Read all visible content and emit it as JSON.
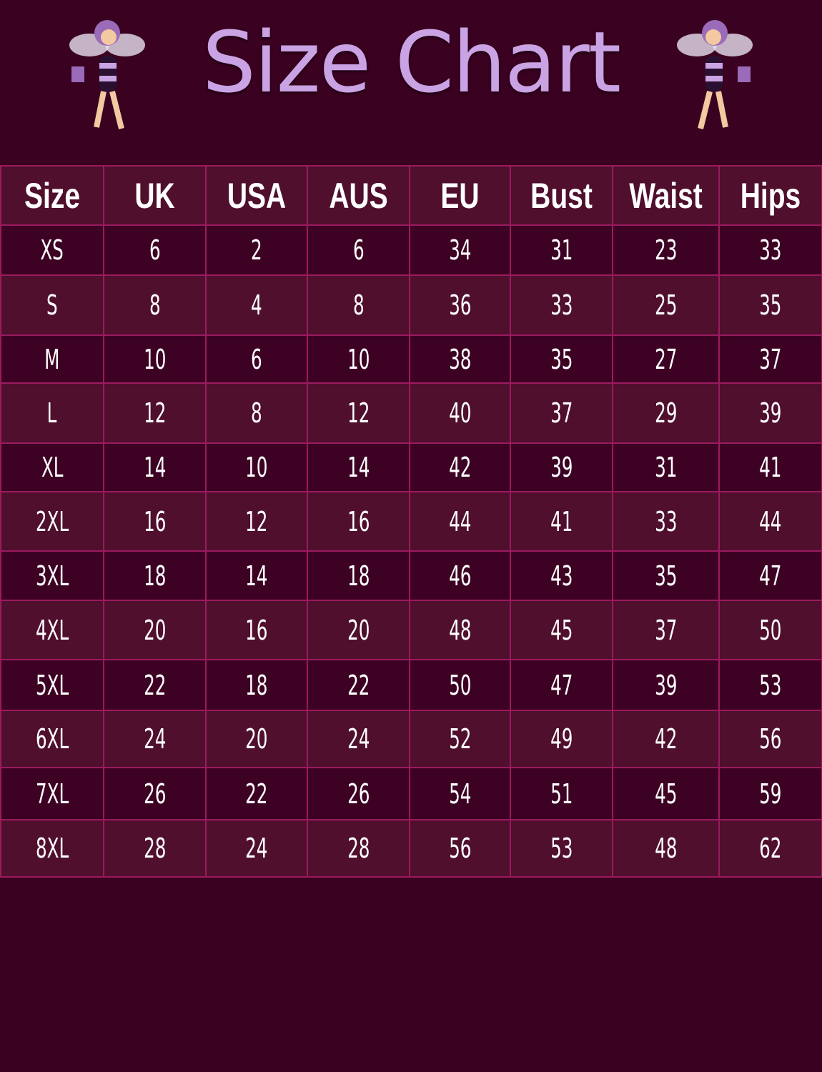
{
  "title": "Size Chart",
  "colors": {
    "background": "#3a0121",
    "row_light": "#4f0f2d",
    "row_dark": "#3d0223",
    "border": "#9c1a5e",
    "title": "#c9a3e3"
  },
  "table": {
    "headers": [
      "Size",
      "UK",
      "USA",
      "AUS",
      "EU",
      "Bust",
      "Waist",
      "Hips"
    ],
    "rows": [
      [
        "XS",
        "6",
        "2",
        "6",
        "34",
        "31",
        "23",
        "33"
      ],
      [
        "S",
        "8",
        "4",
        "8",
        "36",
        "33",
        "25",
        "35"
      ],
      [
        "M",
        "10",
        "6",
        "10",
        "38",
        "35",
        "27",
        "37"
      ],
      [
        "L",
        "12",
        "8",
        "12",
        "40",
        "37",
        "29",
        "39"
      ],
      [
        "XL",
        "14",
        "10",
        "14",
        "42",
        "39",
        "31",
        "41"
      ],
      [
        "2XL",
        "16",
        "12",
        "16",
        "44",
        "41",
        "33",
        "44"
      ],
      [
        "3XL",
        "18",
        "14",
        "18",
        "46",
        "43",
        "35",
        "47"
      ],
      [
        "4XL",
        "20",
        "16",
        "20",
        "48",
        "45",
        "37",
        "50"
      ],
      [
        "5XL",
        "22",
        "18",
        "22",
        "50",
        "47",
        "39",
        "53"
      ],
      [
        "6XL",
        "24",
        "20",
        "24",
        "52",
        "49",
        "42",
        "56"
      ],
      [
        "7XL",
        "26",
        "22",
        "26",
        "54",
        "51",
        "45",
        "59"
      ],
      [
        "8XL",
        "28",
        "24",
        "28",
        "56",
        "53",
        "48",
        "62"
      ]
    ]
  }
}
